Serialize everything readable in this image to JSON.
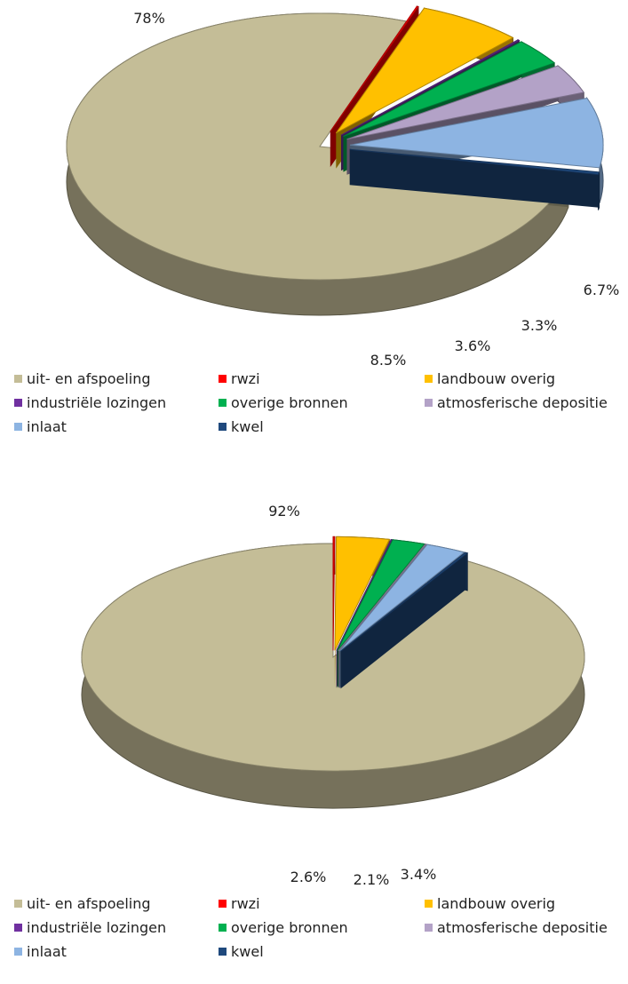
{
  "chart_data": [
    {
      "type": "pie",
      "style": "3d-exploded",
      "legend_position": "bottom",
      "series": [
        {
          "name": "uit- en afspoeling",
          "value": 78,
          "label": "78%",
          "color": "#C4BD97",
          "exploded": false
        },
        {
          "name": "rwzi",
          "value": 0.1,
          "label": "",
          "color": "#FF0000",
          "exploded": true
        },
        {
          "name": "landbouw overig",
          "value": 6.7,
          "label": "6.7%",
          "color": "#FFC000",
          "exploded": true
        },
        {
          "name": "industriële lozingen",
          "value": 0.1,
          "label": "",
          "color": "#7030A0",
          "exploded": true
        },
        {
          "name": "overige bronnen",
          "value": 3.3,
          "label": "3.3%",
          "color": "#00B050",
          "exploded": true
        },
        {
          "name": "atmosferische depositie",
          "value": 3.6,
          "label": "3.6%",
          "color": "#B3A2C7",
          "exploded": true
        },
        {
          "name": "inlaat",
          "value": 8.5,
          "label": "8.5%",
          "color": "#8DB4E2",
          "exploded": true
        },
        {
          "name": "kwel",
          "value": 0.3,
          "label": "",
          "color": "#1F497D",
          "exploded": true
        }
      ]
    },
    {
      "type": "pie",
      "style": "3d-exploded",
      "legend_position": "bottom",
      "series": [
        {
          "name": "uit- en afspoeling",
          "value": 92,
          "label": "92%",
          "color": "#C4BD97",
          "exploded": false
        },
        {
          "name": "rwzi",
          "value": 0.1,
          "label": "",
          "color": "#FF0000",
          "exploded": true
        },
        {
          "name": "landbouw overig",
          "value": 3.4,
          "label": "3.4%",
          "color": "#FFC000",
          "exploded": true
        },
        {
          "name": "industriële lozingen",
          "value": 0.05,
          "label": "",
          "color": "#7030A0",
          "exploded": true
        },
        {
          "name": "overige bronnen",
          "value": 2.1,
          "label": "2.1%",
          "color": "#00B050",
          "exploded": true
        },
        {
          "name": "atmosferische depositie",
          "value": 0.05,
          "label": "",
          "color": "#B3A2C7",
          "exploded": true
        },
        {
          "name": "inlaat",
          "value": 2.6,
          "label": "2.6%",
          "color": "#8DB4E2",
          "exploded": true
        },
        {
          "name": "kwel",
          "value": 0.15,
          "label": "",
          "color": "#1F497D",
          "exploded": true
        }
      ]
    }
  ]
}
